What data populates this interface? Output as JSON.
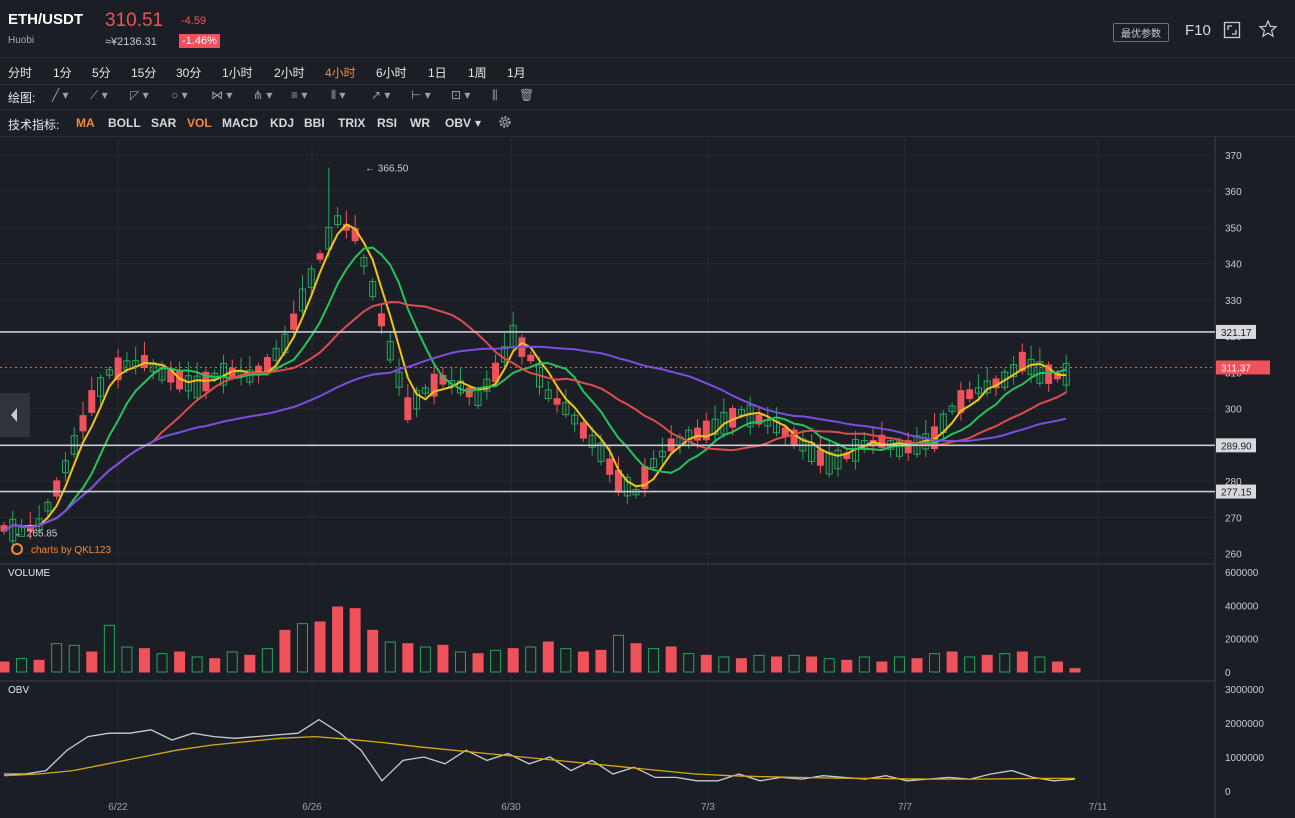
{
  "header": {
    "pair": "ETH/USDT",
    "exchange": "Huobi",
    "price": "310.51",
    "change": "-4.59",
    "cny_price": "≈¥2136.31",
    "change_pct": "-1.46%",
    "param_button": "最优参数",
    "f10": "F10",
    "colors": {
      "up": "#f0525b",
      "down": "#26a65b",
      "accent": "#f5883b"
    }
  },
  "timeframes": [
    "分时",
    "1分",
    "5分",
    "15分",
    "30分",
    "1小时",
    "2小时",
    "4小时",
    "6小时",
    "1日",
    "1周",
    "1月"
  ],
  "active_timeframe": "4小时",
  "drawing": {
    "label": "绘图:",
    "tools": [
      "line-tool",
      "ray-tool",
      "channel-tool",
      "shape-tool",
      "pattern-tool",
      "pitchfork-tool",
      "fib-tool",
      "cycle-tool",
      "arrow-tool",
      "measure-tool",
      "text-tool",
      "magnet-tool",
      "delete-tool"
    ]
  },
  "indicators": {
    "label": "技术指标:",
    "items": [
      "MA",
      "BOLL",
      "SAR",
      "VOL",
      "MACD",
      "KDJ",
      "BBI",
      "TRIX",
      "RSI",
      "WR",
      "OBV"
    ],
    "active": [
      "MA",
      "VOL"
    ],
    "dropdown_item": "OBV"
  },
  "chart_data": {
    "type": "candlestick",
    "price_ticks": [
      "370",
      "360",
      "350",
      "340",
      "330",
      "320",
      "310",
      "300",
      "290",
      "280",
      "270",
      "260"
    ],
    "price_range": [
      258,
      373
    ],
    "x_labels": [
      "6/22",
      "6/26",
      "6/30",
      "7/3",
      "7/7",
      "7/11"
    ],
    "candles_anchor_prices": [
      267,
      266,
      268,
      278,
      290,
      302,
      310,
      312,
      313,
      310,
      308,
      306,
      309,
      310,
      309,
      312,
      318,
      330,
      342,
      352,
      348,
      333,
      316,
      300,
      305,
      308,
      306,
      303,
      310,
      320,
      314,
      304,
      300,
      294,
      288,
      280,
      277,
      285,
      290,
      292,
      294,
      296,
      299,
      297,
      295,
      292,
      288,
      285,
      287,
      290,
      291,
      289,
      290,
      292,
      300,
      304,
      306,
      308,
      313,
      310,
      309,
      310
    ],
    "horizontal_levels": [
      "321.17",
      "311.37",
      "289.90",
      "277.15"
    ],
    "current_price": "311.37",
    "annotations": [
      "366.50",
      "265.85"
    ],
    "watermark": "charts by QKL123",
    "volume": {
      "label": "VOLUME",
      "ticks": [
        "600000",
        "400000",
        "200000",
        "0"
      ],
      "range": [
        0,
        600000
      ],
      "values": [
        60000,
        80000,
        70000,
        170000,
        160000,
        120000,
        280000,
        150000,
        140000,
        110000,
        120000,
        90000,
        80000,
        120000,
        100000,
        140000,
        250000,
        290000,
        300000,
        390000,
        380000,
        250000,
        180000,
        170000,
        150000,
        160000,
        120000,
        110000,
        130000,
        140000,
        150000,
        180000,
        140000,
        120000,
        130000,
        220000,
        170000,
        140000,
        150000,
        110000,
        100000,
        90000,
        80000,
        100000,
        90000,
        100000,
        90000,
        80000,
        70000,
        90000,
        60000,
        90000,
        80000,
        110000,
        120000,
        90000,
        100000,
        110000,
        120000,
        90000,
        60000,
        20000
      ],
      "up_flags": [
        1,
        0,
        1,
        0,
        0,
        1,
        0,
        0,
        1,
        0,
        1,
        0,
        1,
        0,
        1,
        0,
        1,
        0,
        1,
        1,
        1,
        1,
        0,
        1,
        0,
        1,
        0,
        1,
        0,
        1,
        0,
        1,
        0,
        1,
        1,
        0,
        1,
        0,
        1,
        0,
        1,
        0,
        1,
        0,
        1,
        0,
        1,
        0,
        1,
        0,
        1,
        0,
        1,
        0,
        1,
        0,
        1,
        0,
        1,
        0,
        1,
        1
      ]
    },
    "obv": {
      "label": "OBV",
      "ticks": [
        "3000000",
        "2000000",
        "1000000",
        "0"
      ],
      "range": [
        0,
        3000000
      ],
      "line": [
        500000,
        500000,
        600000,
        1200000,
        1600000,
        1700000,
        1700000,
        1800000,
        1500000,
        1700000,
        1600000,
        1550000,
        1600000,
        1650000,
        1700000,
        2100000,
        1700000,
        1200000,
        300000,
        900000,
        1000000,
        800000,
        1200000,
        900000,
        1100000,
        800000,
        1000000,
        600000,
        900000,
        500000,
        700000,
        400000,
        400000,
        300000,
        300000,
        500000,
        300000,
        400000,
        350000,
        450000,
        400000,
        350000,
        450000,
        300000,
        350000,
        400000,
        350000,
        500000,
        600000,
        400000,
        300000,
        350000
      ],
      "signal": [
        450000,
        500000,
        600000,
        800000,
        1000000,
        1200000,
        1350000,
        1450000,
        1550000,
        1600000,
        1520000,
        1420000,
        1300000,
        1200000,
        1100000,
        1000000,
        900000,
        800000,
        700000,
        600000,
        500000,
        450000,
        420000,
        400000,
        380000,
        370000,
        360000,
        350000,
        350000,
        360000,
        370000,
        370000
      ]
    }
  }
}
